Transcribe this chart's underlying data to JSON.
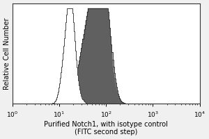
{
  "title": "",
  "xlabel": "Purified Notch1, with isotype control\n(FITC second step)",
  "ylabel": "Relative Cell Number",
  "xmin": 1.0,
  "xmax": 10000.0,
  "ymin": 0,
  "ymax": 1.05,
  "background_color": "#f0f0f0",
  "plot_bg_color": "#ffffff",
  "isotype_color": "#ffffff",
  "isotype_edge_color": "#444444",
  "notch1_color": "#606060",
  "notch1_edge_color": "#222222",
  "xlabel_fontsize": 7.0,
  "ylabel_fontsize": 7.0,
  "tick_fontsize": 6.5
}
